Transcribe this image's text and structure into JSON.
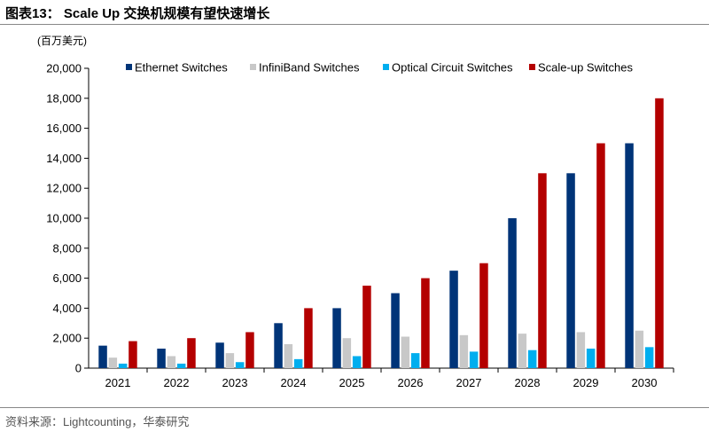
{
  "title": "图表13：  Scale Up 交换机规模有望快速增长",
  "source": "资料来源：Lightcounting，华泰研究",
  "chart_data": {
    "type": "bar",
    "title": "图表13：  Scale Up 交换机规模有望快速增长",
    "ylabel": "(百万美元)",
    "xlabel": "",
    "ylim": [
      0,
      20000
    ],
    "yticks": [
      0,
      2000,
      4000,
      6000,
      8000,
      10000,
      12000,
      14000,
      16000,
      18000,
      20000
    ],
    "ytick_labels": [
      "0",
      "2,000",
      "4,000",
      "6,000",
      "8,000",
      "10,000",
      "12,000",
      "14,000",
      "16,000",
      "18,000",
      "20,000"
    ],
    "grid": false,
    "legend": "top",
    "categories": [
      "2021",
      "2022",
      "2023",
      "2024",
      "2025",
      "2026",
      "2027",
      "2028",
      "2029",
      "2030"
    ],
    "series": [
      {
        "name": "Ethernet Switches",
        "color": "#003478",
        "values": [
          1500,
          1300,
          1700,
          3000,
          4000,
          5000,
          6500,
          10000,
          13000,
          15000
        ]
      },
      {
        "name": "InfiniBand Switches",
        "color": "#c8c8c8",
        "values": [
          700,
          800,
          1000,
          1600,
          2000,
          2100,
          2200,
          2300,
          2400,
          2500
        ]
      },
      {
        "name": "Optical Circuit Switches",
        "color": "#00aeef",
        "values": [
          300,
          300,
          400,
          600,
          800,
          1000,
          1100,
          1200,
          1300,
          1400
        ]
      },
      {
        "name": "Scale-up Switches",
        "color": "#b40000",
        "values": [
          1800,
          2000,
          2400,
          4000,
          5500,
          6000,
          7000,
          13000,
          15000,
          18000
        ]
      }
    ]
  }
}
